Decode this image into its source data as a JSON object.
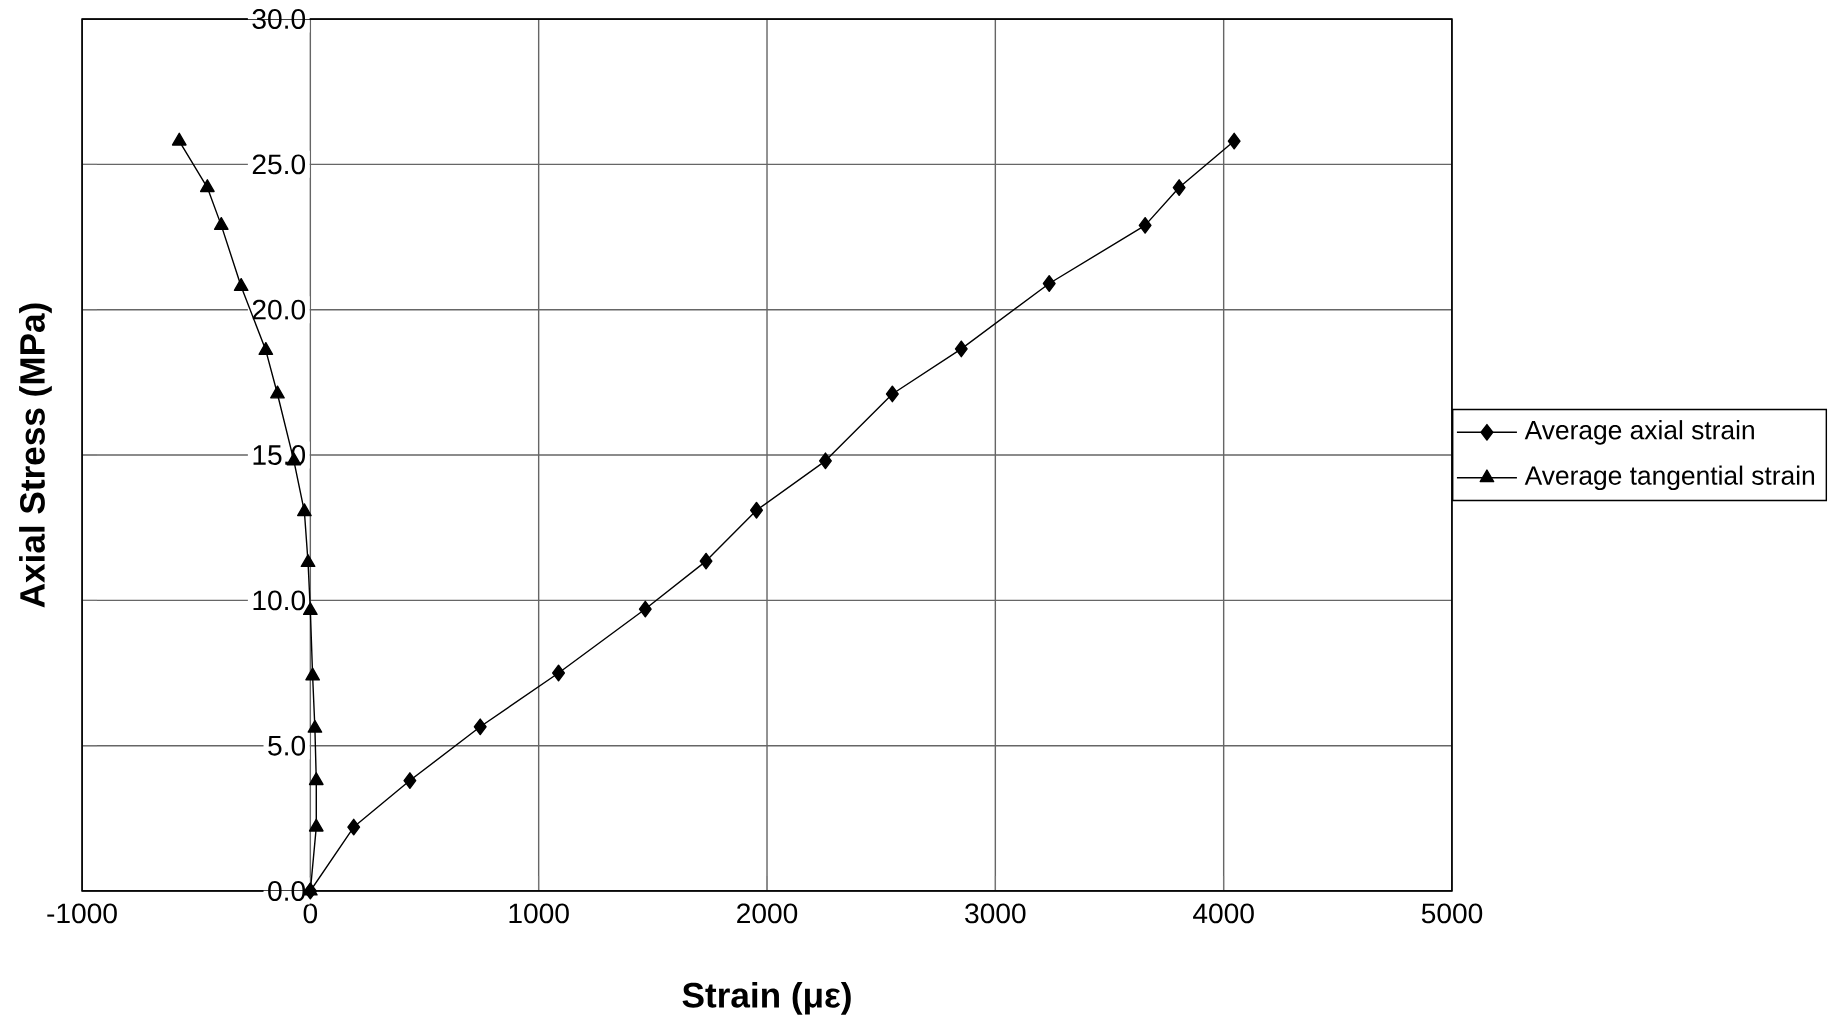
{
  "chart_data": {
    "type": "line",
    "xlabel": "Strain (με)",
    "ylabel": "Axial Stress (MPa)",
    "xlim": [
      -1000,
      5000
    ],
    "ylim": [
      0,
      30
    ],
    "xticks": [
      -1000,
      0,
      1000,
      2000,
      3000,
      4000,
      5000
    ],
    "yticks": [
      {
        "value": 0,
        "label": "0.0"
      },
      {
        "value": 5,
        "label": "5.0"
      },
      {
        "value": 10,
        "label": "10.0"
      },
      {
        "value": 15,
        "label": "15.0"
      },
      {
        "value": 20,
        "label": "20.0"
      },
      {
        "value": 25,
        "label": "25.0"
      },
      {
        "value": 30,
        "label": "30.0"
      }
    ],
    "grid": true,
    "legend": "right",
    "series": [
      {
        "name": "Average axial strain",
        "color": "#000000",
        "marker": "diamond",
        "x": [
          0,
          190,
          436,
          744,
          1087,
          1467,
          1733,
          1954,
          2256,
          2549,
          2851,
          3236,
          3656,
          3805,
          4046
        ],
        "values": [
          0,
          2.2,
          3.8,
          5.65,
          7.5,
          9.7,
          11.35,
          13.1,
          14.8,
          17.1,
          18.65,
          20.9,
          22.9,
          24.2,
          25.8
        ]
      },
      {
        "name": "Average tangential strain",
        "color": "#000000",
        "marker": "triangle",
        "x": [
          0,
          26,
          26,
          20,
          10,
          0,
          -10,
          -26,
          -72,
          -144,
          -195,
          -303,
          -390,
          -451,
          -574
        ],
        "values": [
          0,
          2.2,
          3.8,
          5.6,
          7.4,
          9.65,
          11.3,
          13.05,
          14.8,
          17.1,
          18.6,
          20.8,
          22.9,
          24.2,
          25.8
        ]
      }
    ]
  }
}
